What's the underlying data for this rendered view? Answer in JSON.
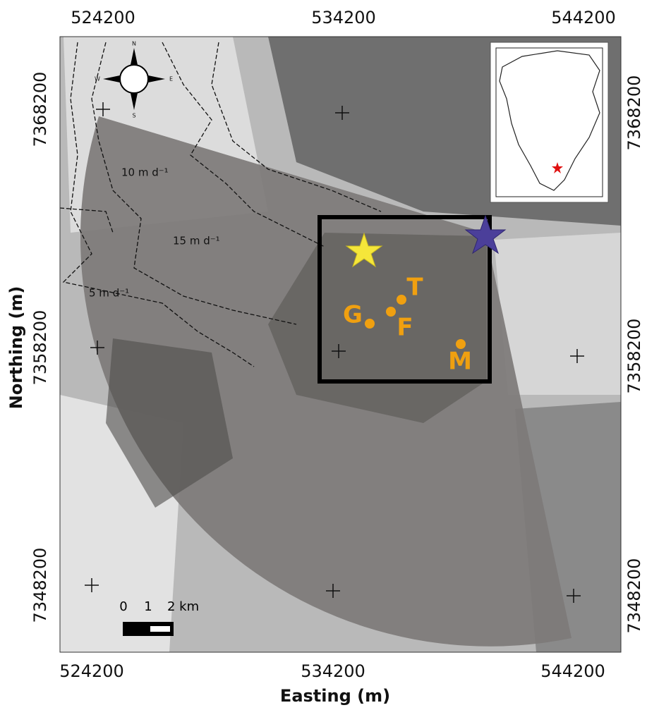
{
  "axes": {
    "top_ticks": [
      "524200",
      "534200",
      "544200"
    ],
    "bottom_ticks": [
      "524200",
      "534200",
      "544200"
    ],
    "left_ticks": [
      "7368200",
      "7358200",
      "7348200"
    ],
    "right_ticks": [
      "7368200",
      "7358200",
      "7348200"
    ],
    "x_title": "Easting (m)",
    "y_title": "Northing (m)"
  },
  "contours": [
    "10 m d⁻¹",
    "15 m d⁻¹",
    "5 m d⁻¹"
  ],
  "sites": [
    "T",
    "G",
    "F",
    "M"
  ],
  "compass": [
    "N",
    "E",
    "S",
    "W"
  ],
  "scale_bar": [
    "0",
    "1",
    "2 km"
  ]
}
